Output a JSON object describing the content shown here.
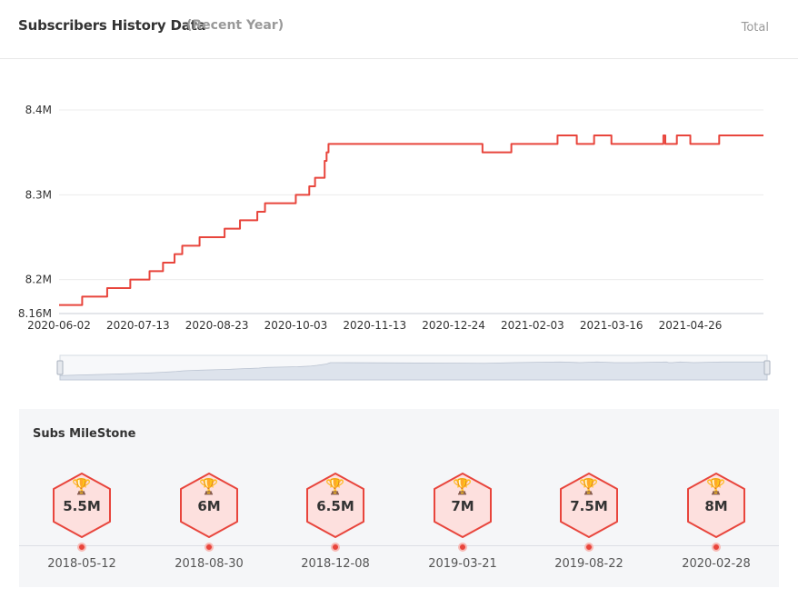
{
  "header": {
    "title": "Subscribers History Data",
    "subtitle": "(Recent Year)",
    "total_label": "Total"
  },
  "colors": {
    "line": "#e8453c",
    "grid": "#ececec",
    "axis_text": "#333333",
    "slider_fill": "#dde3ec",
    "milestone_bg": "#f5f6f8",
    "hex_fill": "#fde0de"
  },
  "chart_data": {
    "type": "line",
    "title": "",
    "xlabel": "",
    "ylabel": "",
    "ylim": [
      8.16,
      8.4
    ],
    "yticks": [
      {
        "value": 8.16,
        "label": "8.16M"
      },
      {
        "value": 8.2,
        "label": "8.2M"
      },
      {
        "value": 8.3,
        "label": "8.3M"
      },
      {
        "value": 8.4,
        "label": "8.4M"
      }
    ],
    "xlim": [
      "2020-06-02",
      "2021-06-03"
    ],
    "xticks": [
      "2020-06-02",
      "2020-07-13",
      "2020-08-23",
      "2020-10-03",
      "2020-11-13",
      "2020-12-24",
      "2021-02-03",
      "2021-03-16",
      "2021-04-26"
    ],
    "grid": true,
    "series": [
      {
        "x": [
          "2020-06-02",
          "2020-06-14",
          "2020-06-27",
          "2020-07-09",
          "2020-07-19",
          "2020-07-26",
          "2020-08-01",
          "2020-08-05",
          "2020-08-14",
          "2020-08-27",
          "2020-09-04",
          "2020-09-13",
          "2020-09-17",
          "2020-10-03",
          "2020-10-10",
          "2020-10-13",
          "2020-10-18",
          "2020-10-19",
          "2020-10-20",
          "2020-10-21",
          "2021-01-08",
          "2021-01-23",
          "2021-02-16",
          "2021-02-26",
          "2021-03-07",
          "2021-03-16",
          "2021-03-26",
          "2021-04-12",
          "2021-04-13",
          "2021-04-15",
          "2021-04-19",
          "2021-04-26",
          "2021-05-11",
          "2021-06-03"
        ],
        "values": [
          8.17,
          8.18,
          8.19,
          8.2,
          8.21,
          8.22,
          8.23,
          8.24,
          8.25,
          8.26,
          8.27,
          8.28,
          8.29,
          8.3,
          8.31,
          8.32,
          8.34,
          8.35,
          8.36,
          8.36,
          8.35,
          8.36,
          8.37,
          8.36,
          8.37,
          8.36,
          8.36,
          8.37,
          8.36,
          8.36,
          8.37,
          8.36,
          8.37,
          8.37
        ]
      }
    ]
  },
  "milestones": {
    "title": "Subs MileStone",
    "items": [
      {
        "value": "5.5M",
        "date": "2018-05-12"
      },
      {
        "value": "6M",
        "date": "2018-08-30"
      },
      {
        "value": "6.5M",
        "date": "2018-12-08"
      },
      {
        "value": "7M",
        "date": "2019-03-21"
      },
      {
        "value": "7.5M",
        "date": "2019-08-22"
      },
      {
        "value": "8M",
        "date": "2020-02-28"
      }
    ]
  }
}
